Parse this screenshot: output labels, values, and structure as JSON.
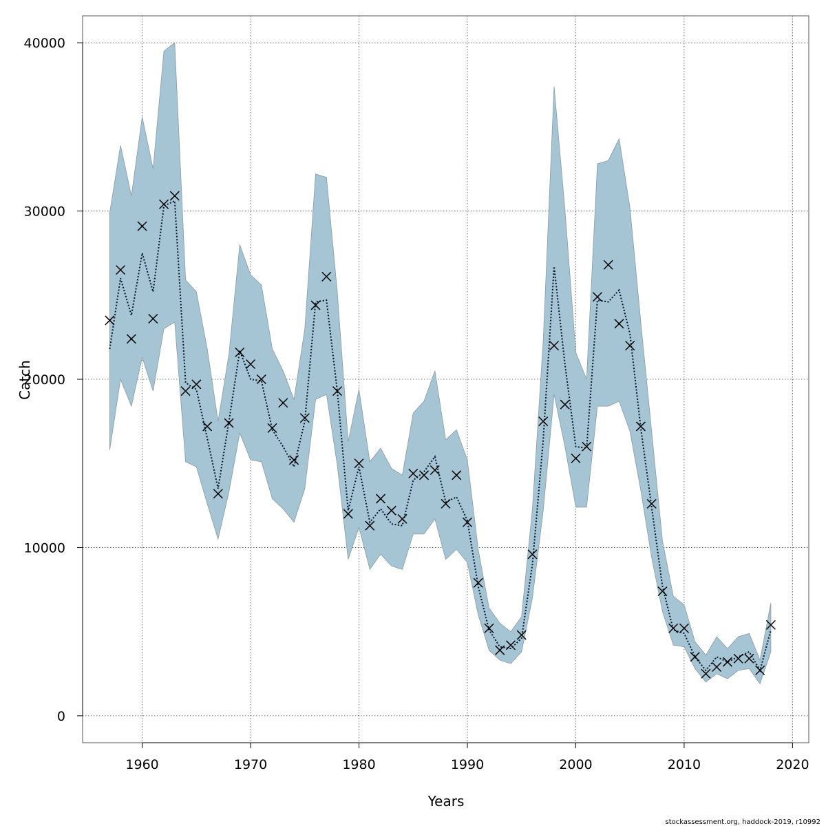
{
  "chart_data": {
    "type": "line",
    "xlabel": "Years",
    "ylabel": "Catch",
    "xlim": [
      1954.5,
      2021.5
    ],
    "ylim": [
      -1600,
      41600
    ],
    "x_ticks": [
      1960,
      1970,
      1980,
      1990,
      2000,
      2010,
      2020
    ],
    "y_ticks": [
      0,
      10000,
      20000,
      30000,
      40000
    ],
    "grid": true,
    "colors": {
      "band": "#a5c4d4",
      "band_edge": "#8a9aa3",
      "fit_line": "#00152b",
      "observed": "#000000"
    },
    "years": [
      1957,
      1958,
      1959,
      1960,
      1961,
      1962,
      1963,
      1964,
      1965,
      1966,
      1967,
      1968,
      1969,
      1970,
      1971,
      1972,
      1973,
      1974,
      1975,
      1976,
      1977,
      1978,
      1979,
      1980,
      1981,
      1982,
      1983,
      1984,
      1985,
      1986,
      1987,
      1988,
      1989,
      1990,
      1991,
      1992,
      1993,
      1994,
      1995,
      1996,
      1997,
      1998,
      1999,
      2000,
      2001,
      2002,
      2003,
      2004,
      2005,
      2006,
      2007,
      2008,
      2009,
      2010,
      2011,
      2012,
      2013,
      2014,
      2015,
      2016,
      2017,
      2018
    ],
    "series": [
      {
        "name": "observed",
        "style": "cross",
        "values": [
          23500,
          26500,
          22400,
          29100,
          23600,
          30400,
          30900,
          19300,
          19700,
          17200,
          13200,
          17400,
          21600,
          20900,
          20000,
          17100,
          18600,
          15200,
          17700,
          24400,
          26100,
          19300,
          12000,
          15000,
          11300,
          12900,
          12200,
          11700,
          14400,
          14300,
          14600,
          12600,
          14300,
          11500,
          7900,
          5200,
          3900,
          4200,
          4800,
          9600,
          17500,
          22000,
          18500,
          15300,
          16000,
          24900,
          26800,
          23300,
          22000,
          17200,
          12600,
          7400,
          5200,
          5200,
          3500,
          2500,
          2900,
          3200,
          3400,
          3400,
          2700,
          5400
        ]
      },
      {
        "name": "estimate",
        "style": "dotted-line",
        "values": [
          21800,
          26000,
          23800,
          27500,
          25200,
          30300,
          30600,
          19800,
          19400,
          16500,
          13500,
          17500,
          21700,
          20000,
          19900,
          17000,
          16000,
          14800,
          17500,
          24600,
          24700,
          19300,
          12200,
          14800,
          11500,
          12300,
          11400,
          11300,
          14000,
          14500,
          15400,
          12700,
          13000,
          11600,
          7700,
          5100,
          4100,
          4000,
          4600,
          9000,
          16400,
          26700,
          20900,
          16000,
          15900,
          24700,
          24600,
          25300,
          22700,
          17100,
          12400,
          7700,
          5100,
          4900,
          3500,
          2700,
          3500,
          3200,
          3500,
          3800,
          2700,
          5100
        ]
      },
      {
        "name": "upper",
        "style": "band-edge",
        "values": [
          29900,
          33900,
          30900,
          35600,
          32500,
          39500,
          40000,
          25900,
          25200,
          21800,
          17500,
          21500,
          28000,
          26200,
          25600,
          21800,
          20500,
          18800,
          23000,
          32200,
          32000,
          25200,
          16300,
          19400,
          15100,
          15900,
          14700,
          14300,
          18000,
          18700,
          20500,
          16400,
          17000,
          15200,
          9900,
          6400,
          5500,
          5000,
          5900,
          12300,
          22300,
          37400,
          30100,
          21600,
          20000,
          32800,
          33000,
          34300,
          30200,
          23400,
          16900,
          10400,
          7100,
          6600,
          4400,
          3600,
          4700,
          4000,
          4700,
          4900,
          3300,
          6700
        ]
      },
      {
        "name": "lower",
        "style": "band-edge",
        "values": [
          15800,
          20000,
          18400,
          21300,
          19300,
          23000,
          23400,
          15100,
          14800,
          12600,
          10500,
          13300,
          16800,
          15200,
          15100,
          12900,
          12300,
          11500,
          13500,
          18800,
          19100,
          14900,
          9300,
          11200,
          8700,
          9600,
          8900,
          8700,
          10800,
          10800,
          11700,
          9300,
          9900,
          9100,
          6000,
          3900,
          3300,
          3100,
          3800,
          7000,
          12200,
          19100,
          16000,
          12400,
          12400,
          18400,
          18400,
          18700,
          16900,
          13400,
          9400,
          6200,
          4200,
          4100,
          2800,
          2000,
          2500,
          2200,
          2700,
          2800,
          1900,
          3800
        ]
      }
    ]
  },
  "footer": "stockassessment.org, haddock-2019, r10992"
}
